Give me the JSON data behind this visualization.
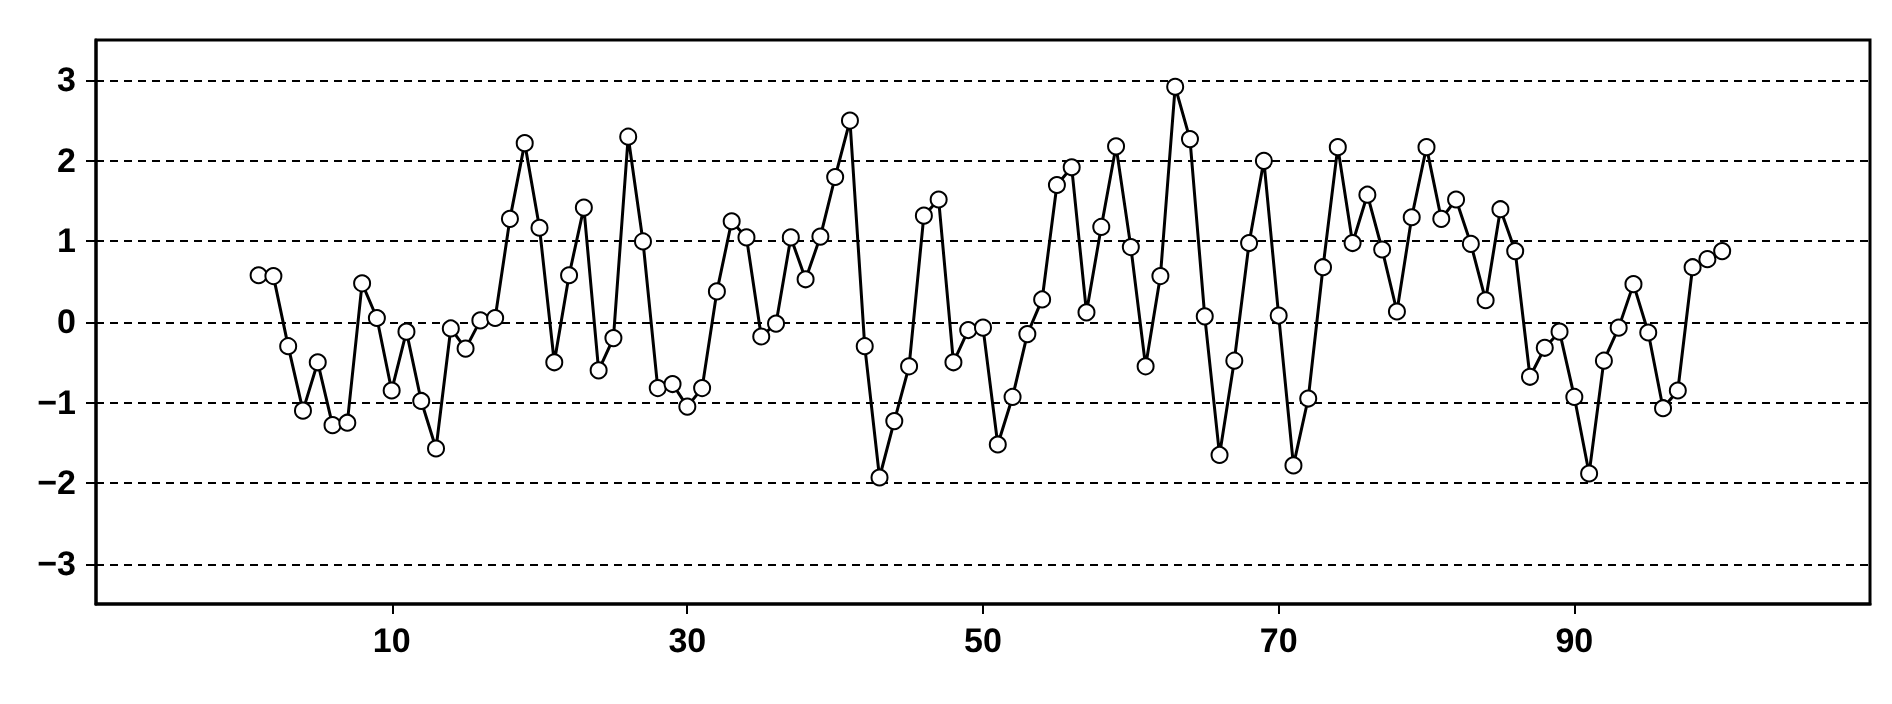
{
  "chart_data": {
    "type": "line",
    "marker": "circle",
    "line_style": "solid",
    "grid": "y",
    "xlim": [
      -10,
      110
    ],
    "xticks": [
      10,
      30,
      50,
      70,
      90
    ],
    "ylim": [
      -3.5,
      3.5
    ],
    "yticks": [
      -3,
      -2,
      -1,
      0,
      1,
      2,
      3
    ],
    "series": [
      {
        "color": "#000000",
        "x": [
          1,
          2,
          3,
          4,
          5,
          6,
          7,
          8,
          9,
          10,
          11,
          12,
          13,
          14,
          15,
          16,
          17,
          18,
          19,
          20,
          21,
          22,
          23,
          24,
          25,
          26,
          27,
          28,
          29,
          30,
          31,
          32,
          33,
          34,
          35,
          36,
          37,
          38,
          39,
          40,
          41,
          42,
          43,
          44,
          45,
          46,
          47,
          48,
          49,
          50,
          51,
          52,
          53,
          54,
          55,
          56,
          57,
          58,
          59,
          60,
          61,
          62,
          63,
          64,
          65,
          66,
          67,
          68,
          69,
          70,
          71,
          72,
          73,
          74,
          75,
          76,
          77,
          78,
          79,
          80,
          81,
          82,
          83,
          84,
          85,
          86,
          87,
          88,
          89,
          90,
          91,
          92,
          93,
          94,
          95,
          96,
          97,
          98,
          99,
          100
        ],
        "values": [
          0.58,
          0.57,
          -0.3,
          -1.1,
          -0.5,
          -1.28,
          -1.25,
          0.48,
          0.05,
          -0.85,
          -0.12,
          -0.98,
          -1.57,
          -0.08,
          -0.33,
          0.02,
          0.05,
          1.28,
          2.22,
          1.17,
          -0.5,
          0.58,
          1.42,
          -0.6,
          -0.2,
          2.3,
          1.0,
          -0.82,
          -0.77,
          -1.05,
          -0.82,
          0.38,
          1.25,
          1.05,
          -0.18,
          -0.02,
          1.05,
          0.53,
          1.06,
          1.8,
          2.5,
          -0.3,
          -1.93,
          -1.23,
          -0.55,
          1.32,
          1.52,
          -0.5,
          -0.1,
          -0.07,
          -1.52,
          -0.93,
          -0.15,
          0.28,
          1.7,
          1.92,
          0.12,
          1.18,
          2.18,
          0.93,
          -0.55,
          0.57,
          2.92,
          2.27,
          0.07,
          -1.65,
          -0.48,
          0.98,
          2.0,
          0.08,
          -1.78,
          -0.95,
          0.68,
          2.17,
          0.98,
          1.58,
          0.9,
          0.13,
          1.3,
          2.17,
          1.28,
          1.52,
          0.97,
          0.27,
          1.4,
          0.88,
          -0.68,
          -0.32,
          -0.12,
          -0.93,
          -1.88,
          -0.48,
          -0.07,
          0.47,
          -0.13,
          -1.07,
          -0.85,
          0.68,
          0.78,
          0.88
        ]
      }
    ]
  }
}
